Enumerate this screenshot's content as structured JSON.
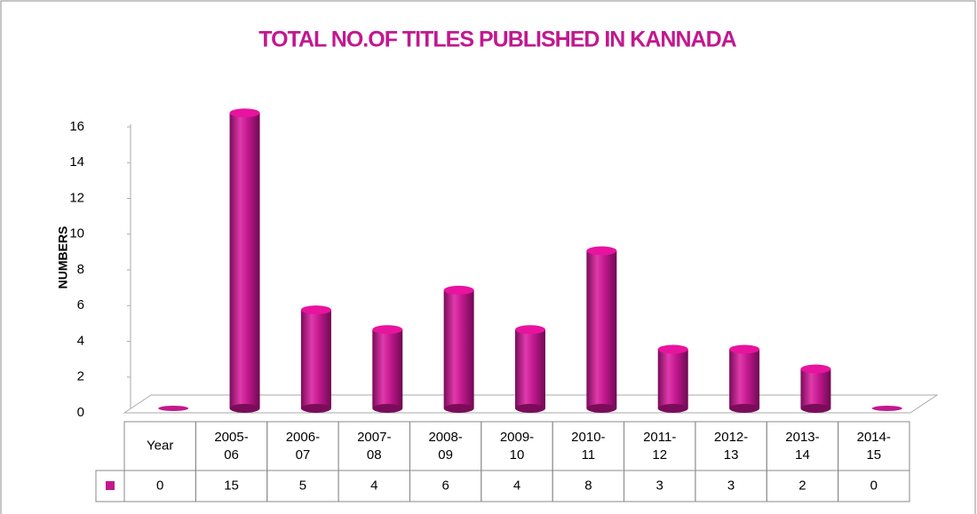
{
  "chart_data": {
    "type": "bar",
    "title": "TOTAL NO.OF TITLES PUBLISHED IN KANNADA",
    "y_label": "NUMBERS",
    "categories": [
      "Year",
      "2005-06",
      "2006-07",
      "2007-08",
      "2008-09",
      "2009-10",
      "2010-11",
      "2011-12",
      "2012-13",
      "2013-14",
      "2014-15"
    ],
    "values": [
      0,
      15,
      5,
      4,
      6,
      4,
      8,
      3,
      3,
      2,
      0
    ],
    "color": "#c2188f",
    "ylim": [
      0,
      16
    ],
    "yticks": [
      0,
      2,
      4,
      6,
      8,
      10,
      12,
      14,
      16
    ]
  }
}
